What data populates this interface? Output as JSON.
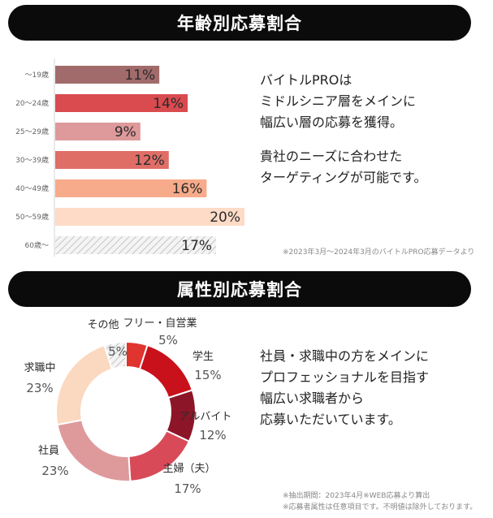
{
  "age_section": {
    "title": "年齢別応募割合",
    "description": [
      "バイトルPROは",
      "ミドルシニア層をメインに",
      "幅広い層の応募を獲得。",
      "",
      "貴社のニーズに合わせた",
      "ターゲティングが可能です。"
    ],
    "source_note": "※2023年3月～2024年3月のバイトルPRO応募データより"
  },
  "attr_section": {
    "title": "属性別応募割合",
    "description": [
      "社員・求職中の方をメインに",
      "プロフェッショナルを目指す",
      "幅広い求職者から",
      "応募いただいています。"
    ],
    "notes": [
      "※抽出期間：2023年4月※WEB応募より算出",
      "※応募者属性は任意項目です。不明値は除外しております。"
    ]
  },
  "chart_data": [
    {
      "type": "bar",
      "orientation": "horizontal",
      "title": "年齢別応募割合",
      "categories": [
        "〜19歳",
        "20〜24歳",
        "25〜29歳",
        "30〜39歳",
        "40〜49歳",
        "50〜59歳",
        "60歳〜"
      ],
      "values": [
        11,
        14,
        9,
        12,
        16,
        20,
        17
      ],
      "value_labels": [
        "11%",
        "14%",
        "9%",
        "12%",
        "16%",
        "20%",
        "17%"
      ],
      "colors": [
        "#a26b6b",
        "#d94b4f",
        "#de999b",
        "#df6e67",
        "#f7ab8a",
        "#fddbc7",
        "hatch"
      ],
      "xlim": [
        0,
        21
      ]
    },
    {
      "type": "pie",
      "donut": true,
      "title": "属性別応募割合",
      "labels": [
        "フリー・自営業",
        "学生",
        "アルバイト",
        "主婦（夫）",
        "社員",
        "求職中",
        "その他"
      ],
      "values": [
        5,
        15,
        12,
        17,
        23,
        23,
        5
      ],
      "value_labels": [
        "5%",
        "15%",
        "12%",
        "17%",
        "23%",
        "23%",
        "5%"
      ],
      "colors": [
        "#e0342e",
        "#c8111b",
        "#8c1628",
        "#d94a58",
        "#de9a9b",
        "#fbd8c0",
        "hatch"
      ]
    }
  ]
}
